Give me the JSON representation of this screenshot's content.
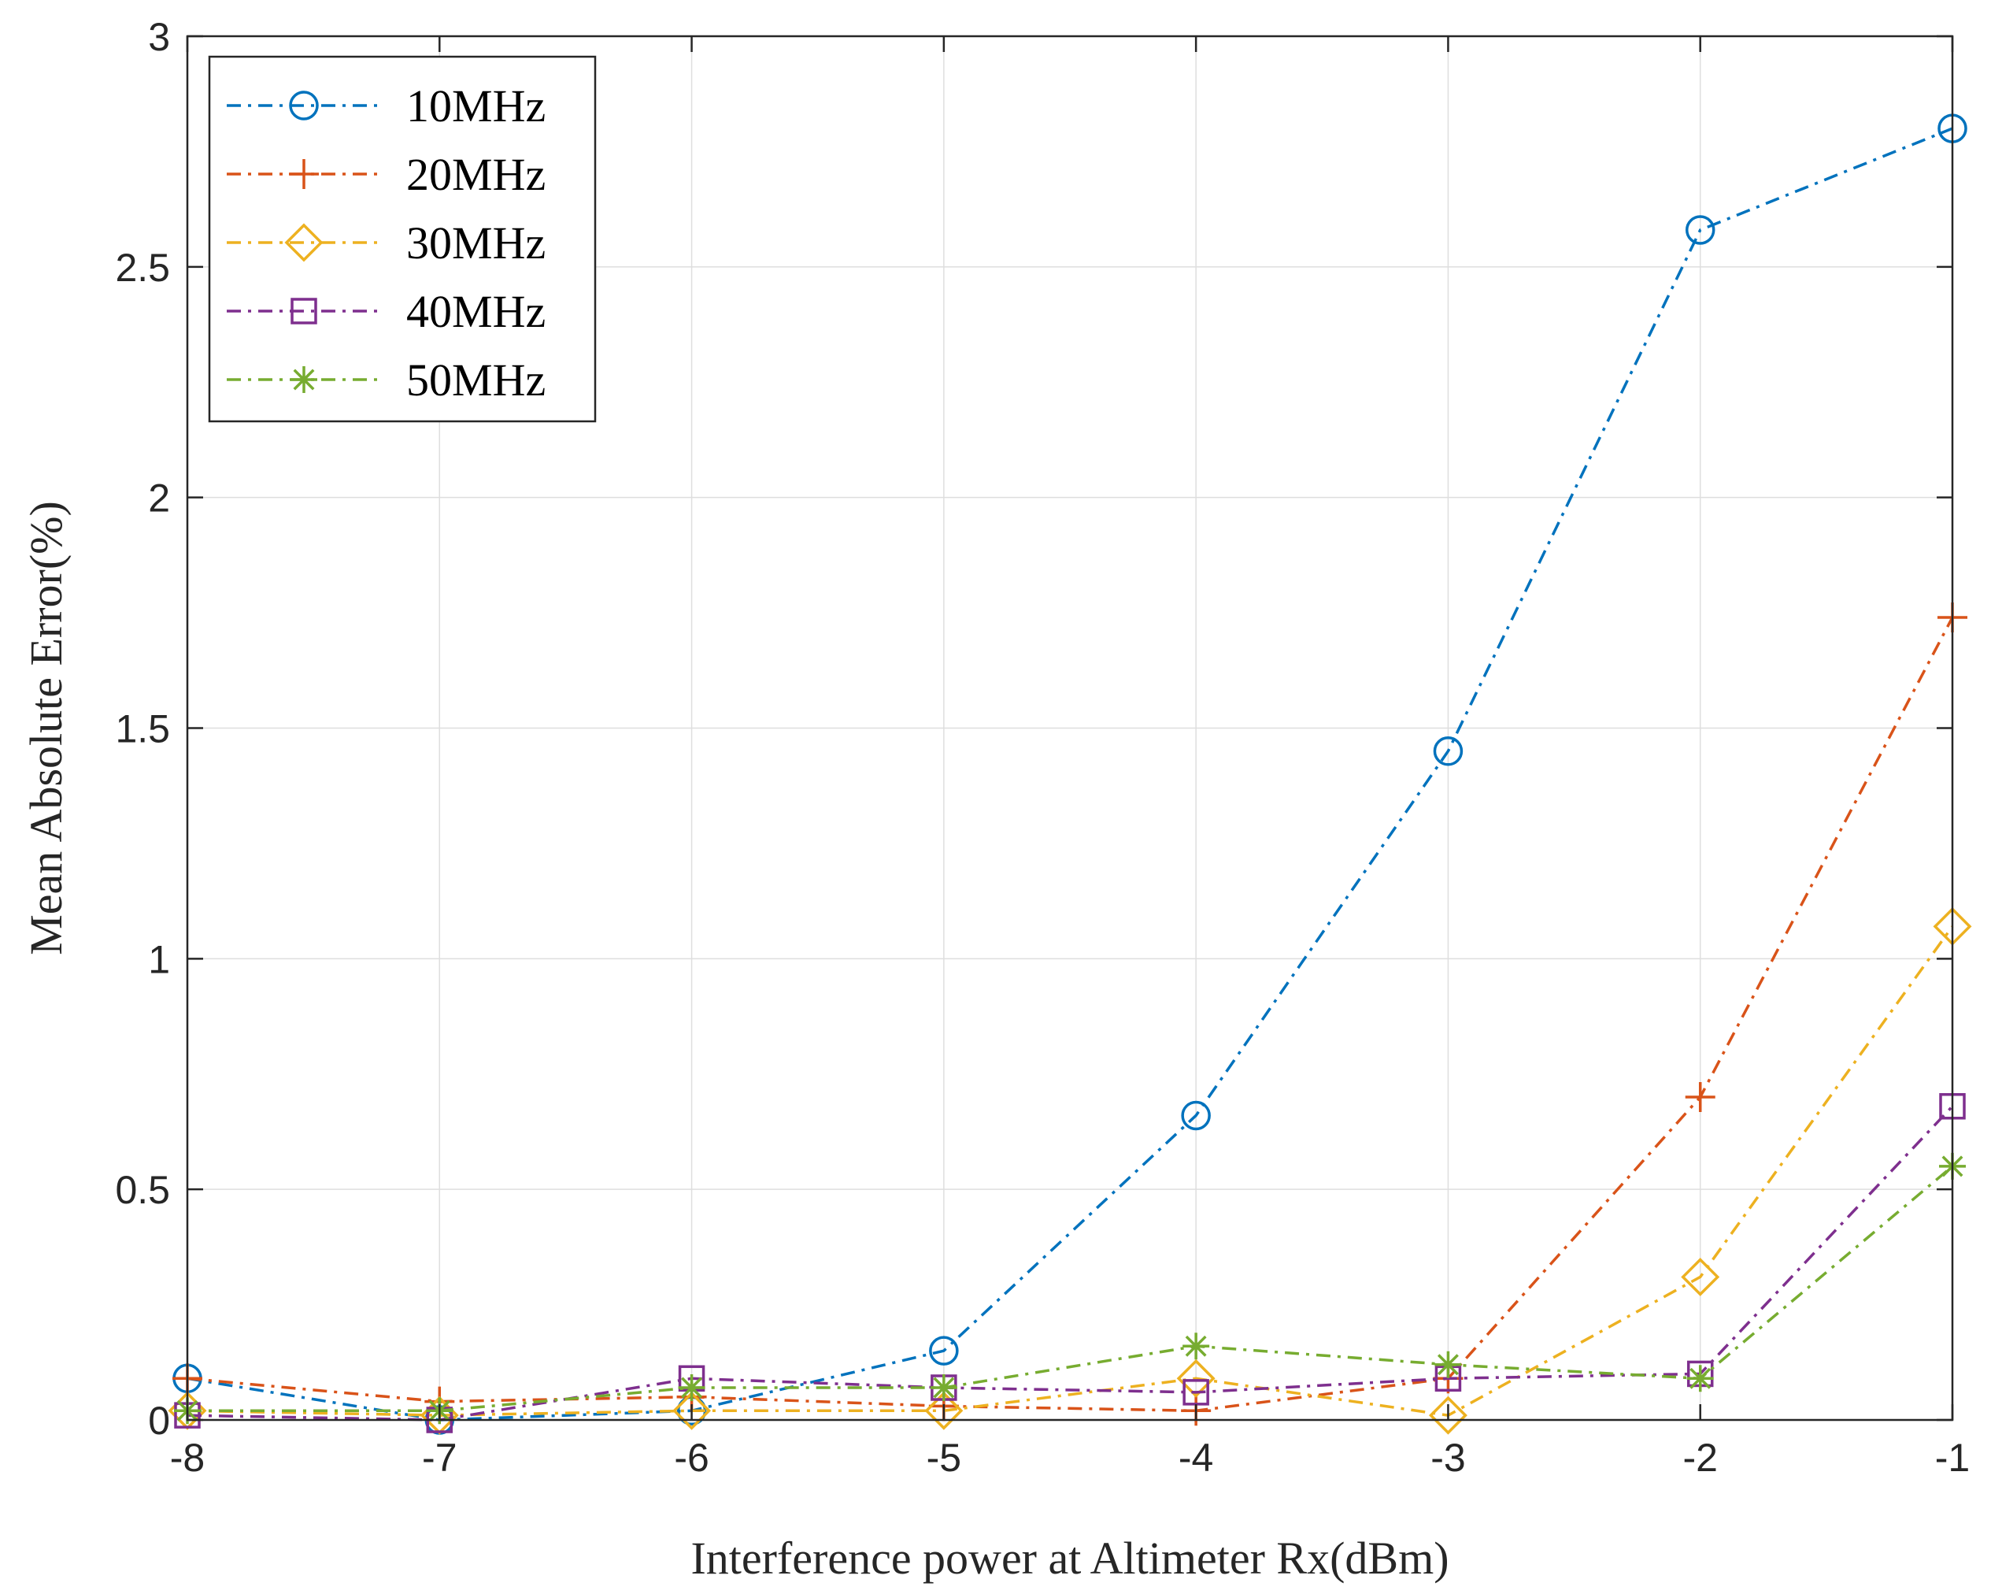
{
  "chart_data": {
    "type": "line",
    "title": "",
    "xlabel": "Interference power at Altimeter Rx(dBm)",
    "ylabel": "Mean Absolute Error(%)",
    "x": [
      -8,
      -7,
      -6,
      -5,
      -4,
      -3,
      -2,
      -1
    ],
    "xlim": [
      -8,
      -1
    ],
    "ylim": [
      0,
      3
    ],
    "xticks": [
      -8,
      -7,
      -6,
      -5,
      -4,
      -3,
      -2,
      -1
    ],
    "yticks": [
      0,
      0.5,
      1,
      1.5,
      2,
      2.5,
      3
    ],
    "xtick_labels": [
      "-8",
      "-7",
      "-6",
      "-5",
      "-4",
      "-3",
      "-2",
      "-1"
    ],
    "ytick_labels": [
      "0",
      "0.5",
      "1",
      "1.5",
      "2",
      "2.5",
      "3"
    ],
    "grid": true,
    "legend_position": "top-left",
    "series": [
      {
        "name": "10MHz",
        "color": "#0072BD",
        "marker": "circle",
        "values": [
          0.09,
          0.0,
          0.02,
          0.15,
          0.66,
          1.45,
          2.58,
          2.8
        ]
      },
      {
        "name": "20MHz",
        "color": "#D95319",
        "marker": "plus",
        "values": [
          0.09,
          0.04,
          0.05,
          0.03,
          0.02,
          0.09,
          0.7,
          1.74
        ]
      },
      {
        "name": "30MHz",
        "color": "#EDB120",
        "marker": "diamond",
        "values": [
          0.02,
          0.01,
          0.02,
          0.02,
          0.09,
          0.01,
          0.31,
          1.07
        ]
      },
      {
        "name": "40MHz",
        "color": "#7E2F8E",
        "marker": "square",
        "values": [
          0.01,
          0.0,
          0.09,
          0.07,
          0.06,
          0.09,
          0.1,
          0.68
        ]
      },
      {
        "name": "50MHz",
        "color": "#77AC30",
        "marker": "star",
        "values": [
          0.02,
          0.02,
          0.07,
          0.07,
          0.16,
          0.12,
          0.09,
          0.55
        ]
      }
    ]
  }
}
